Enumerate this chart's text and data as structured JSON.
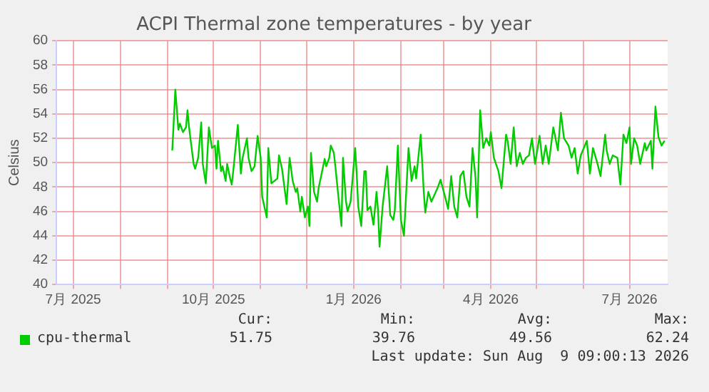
{
  "chart_data": {
    "type": "line",
    "title": "ACPI Thermal zone temperatures - by year",
    "ylabel": "Celsius",
    "xlim": [
      "2025-06-20",
      "2026-07-26"
    ],
    "ylim": [
      40,
      60
    ],
    "yticks": [
      40,
      42,
      44,
      46,
      48,
      50,
      52,
      54,
      56,
      58,
      60
    ],
    "xticks": [
      {
        "value": "2025-07-01",
        "label": "7月 2025"
      },
      {
        "value": "2025-08-01",
        "label": null
      },
      {
        "value": "2025-09-01",
        "label": null
      },
      {
        "value": "2025-10-01",
        "label": "10月 2025"
      },
      {
        "value": "2025-11-01",
        "label": null
      },
      {
        "value": "2025-12-01",
        "label": null
      },
      {
        "value": "2026-01-01",
        "label": "1月 2026"
      },
      {
        "value": "2026-02-01",
        "label": null
      },
      {
        "value": "2026-03-01",
        "label": null
      },
      {
        "value": "2026-04-01",
        "label": "4月 2026"
      },
      {
        "value": "2026-05-01",
        "label": null
      },
      {
        "value": "2026-06-01",
        "label": null
      },
      {
        "value": "2026-07-01",
        "label": "7月 2026"
      }
    ],
    "grid": true,
    "legend": "bottom",
    "marker": "none",
    "line_style": "solid",
    "annotations": [
      "Cur:",
      "Min:",
      "Avg:",
      "Max:",
      "51.75",
      "39.76",
      "49.56",
      "62.24",
      "Last update: Sun Aug  9 09:00:13 2026"
    ],
    "x": [
      "2025-09-04",
      "2025-09-06",
      "2025-09-08",
      "2025-09-09",
      "2025-09-11",
      "2025-09-13",
      "2025-09-14",
      "2025-09-15",
      "2025-09-18",
      "2025-09-19",
      "2025-09-21",
      "2025-09-23",
      "2025-09-24",
      "2025-09-26",
      "2025-09-28",
      "2025-09-30",
      "2025-10-02",
      "2025-10-03",
      "2025-10-04",
      "2025-10-06",
      "2025-10-07",
      "2025-10-09",
      "2025-10-10",
      "2025-10-12",
      "2025-10-13",
      "2025-10-14",
      "2025-10-17",
      "2025-10-19",
      "2025-10-20",
      "2025-10-23",
      "2025-10-24",
      "2025-10-26",
      "2025-10-28",
      "2025-10-30",
      "2025-11-01",
      "2025-11-02",
      "2025-11-05",
      "2025-11-06",
      "2025-11-08",
      "2025-11-10",
      "2025-11-12",
      "2025-11-13",
      "2025-11-15",
      "2025-11-18",
      "2025-11-20",
      "2025-11-22",
      "2025-11-24",
      "2025-11-25",
      "2025-11-27",
      "2025-11-28",
      "2025-11-30",
      "2025-12-02",
      "2025-12-03",
      "2025-12-04",
      "2025-12-06",
      "2025-12-08",
      "2025-12-09",
      "2025-12-11",
      "2025-12-13",
      "2025-12-14",
      "2025-12-16",
      "2025-12-17",
      "2025-12-19",
      "2025-12-20",
      "2025-12-22",
      "2025-12-24",
      "2025-12-25",
      "2025-12-27",
      "2025-12-28",
      "2025-12-30",
      "2026-01-02",
      "2026-01-03",
      "2026-01-04",
      "2026-01-06",
      "2026-01-08",
      "2026-01-09",
      "2026-01-10",
      "2026-01-12",
      "2026-01-14",
      "2026-01-16",
      "2026-01-17",
      "2026-01-18",
      "2026-01-20",
      "2026-01-23",
      "2026-01-25",
      "2026-01-27",
      "2026-01-28",
      "2026-01-30",
      "2026-02-01",
      "2026-02-03",
      "2026-02-06",
      "2026-02-08",
      "2026-02-10",
      "2026-02-11",
      "2026-02-14",
      "2026-02-16",
      "2026-02-17",
      "2026-02-19",
      "2026-02-21",
      "2026-02-25",
      "2026-02-27",
      "2026-03-02",
      "2026-03-04",
      "2026-03-06",
      "2026-03-08",
      "2026-03-10",
      "2026-03-12",
      "2026-03-14",
      "2026-03-16",
      "2026-03-18",
      "2026-03-20",
      "2026-03-22",
      "2026-03-23",
      "2026-03-25",
      "2026-03-27",
      "2026-03-29",
      "2026-03-31",
      "2026-04-01",
      "2026-04-03",
      "2026-04-06",
      "2026-04-08",
      "2026-04-11",
      "2026-04-12",
      "2026-04-14",
      "2026-04-16",
      "2026-04-18",
      "2026-04-20",
      "2026-04-22",
      "2026-04-24",
      "2026-04-26",
      "2026-04-28",
      "2026-04-30",
      "2026-05-03",
      "2026-05-05",
      "2026-05-07",
      "2026-05-09",
      "2026-05-12",
      "2026-05-15",
      "2026-05-17",
      "2026-05-19",
      "2026-05-22",
      "2026-05-24",
      "2026-05-26",
      "2026-05-28",
      "2026-05-30",
      "2026-06-01",
      "2026-06-03",
      "2026-06-05",
      "2026-06-07",
      "2026-06-10",
      "2026-06-12",
      "2026-06-15",
      "2026-06-16",
      "2026-06-18",
      "2026-06-20",
      "2026-06-23",
      "2026-06-25",
      "2026-06-27",
      "2026-06-29",
      "2026-07-01",
      "2026-07-02",
      "2026-07-04",
      "2026-07-06",
      "2026-07-08",
      "2026-07-11",
      "2026-07-12",
      "2026-07-15",
      "2026-07-16",
      "2026-07-18",
      "2026-07-20",
      "2026-07-22",
      "2026-07-24"
    ],
    "series": [
      {
        "name": "cpu-thermal",
        "color": "#00cc00",
        "values": [
          51.0,
          56.0,
          52.7,
          53.2,
          52.5,
          52.9,
          54.3,
          52.9,
          49.9,
          49.5,
          50.4,
          53.3,
          49.9,
          48.3,
          52.9,
          51.2,
          51.4,
          49.5,
          51.8,
          49.3,
          49.7,
          48.5,
          49.9,
          48.7,
          48.2,
          49.3,
          53.1,
          49.1,
          50.3,
          52.0,
          50.4,
          49.3,
          49.7,
          52.2,
          50.4,
          47.2,
          45.5,
          51.2,
          48.3,
          48.5,
          48.7,
          50.6,
          49.5,
          46.6,
          50.4,
          48.5,
          47.6,
          47.9,
          46.0,
          47.2,
          45.5,
          46.4,
          44.8,
          50.8,
          47.6,
          46.8,
          47.9,
          49.1,
          50.3,
          49.7,
          50.4,
          51.4,
          50.8,
          49.7,
          47.2,
          44.8,
          50.4,
          46.8,
          46.0,
          46.8,
          51.2,
          49.1,
          46.4,
          44.8,
          49.3,
          49.3,
          46.1,
          46.4,
          44.9,
          47.6,
          46.1,
          43.1,
          46.4,
          49.7,
          45.7,
          45.3,
          46.1,
          51.4,
          45.3,
          44.0,
          51.2,
          48.5,
          49.7,
          48.7,
          52.3,
          47.6,
          45.9,
          47.6,
          46.8,
          47.9,
          48.6,
          47.2,
          46.2,
          48.9,
          46.4,
          45.5,
          48.9,
          49.3,
          47.2,
          46.4,
          51.2,
          48.7,
          45.5,
          54.3,
          51.2,
          52.0,
          51.4,
          52.5,
          50.4,
          49.3,
          47.9,
          52.3,
          51.8,
          49.9,
          52.9,
          49.7,
          50.8,
          49.9,
          50.4,
          50.6,
          52.0,
          49.9,
          52.2,
          49.9,
          51.4,
          49.9,
          52.9,
          51.0,
          54.1,
          52.0,
          51.4,
          50.4,
          51.2,
          49.1,
          50.6,
          51.2,
          51.8,
          49.1,
          51.2,
          49.9,
          48.9,
          52.3,
          51.0,
          49.9,
          50.6,
          50.4,
          48.2,
          52.3,
          51.6,
          52.9,
          49.9,
          52.0,
          51.4,
          49.9,
          51.6,
          51.0,
          51.8,
          49.5,
          54.6,
          52.1,
          51.4,
          51.8
        ]
      }
    ]
  }
}
